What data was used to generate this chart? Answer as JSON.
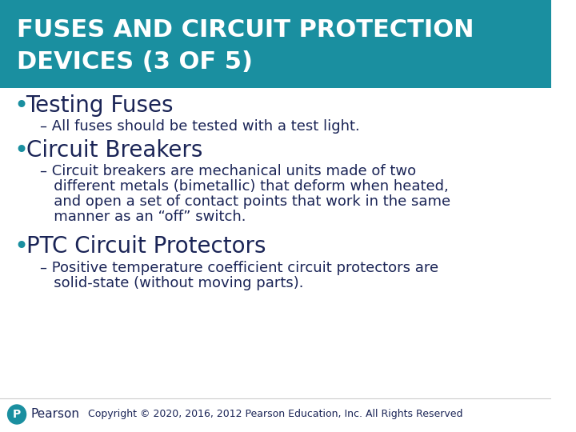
{
  "title_line1": "FUSES AND CIRCUIT PROTECTION",
  "title_line2": "DEVICES (3 OF 5)",
  "title_bg_color": "#1a8fa0",
  "title_text_color": "#ffffff",
  "body_bg_color": "#ffffff",
  "text_color": "#1a2456",
  "bullet_color": "#1a8fa0",
  "bullet1_header": "Testing Fuses",
  "bullet1_sub": "– All fuses should be tested with a test light.",
  "bullet2_header": "Circuit Breakers",
  "bullet2_sub_line1": "– Circuit breakers are mechanical units made of two",
  "bullet2_sub_line2": "   different metals (bimetallic) that deform when heated,",
  "bullet2_sub_line3": "   and open a set of contact points that work in the same",
  "bullet2_sub_line4": "   manner as an “off” switch.",
  "bullet3_header": "PTC Circuit Protectors",
  "bullet3_sub_line1": "– Positive temperature coefficient circuit protectors are",
  "bullet3_sub_line2": "   solid-state (without moving parts).",
  "footer_text": "Copyright © 2020, 2016, 2012 Pearson Education, Inc. All Rights Reserved",
  "pearson_text": "Pearson",
  "pearson_logo_color": "#1a8fa0"
}
